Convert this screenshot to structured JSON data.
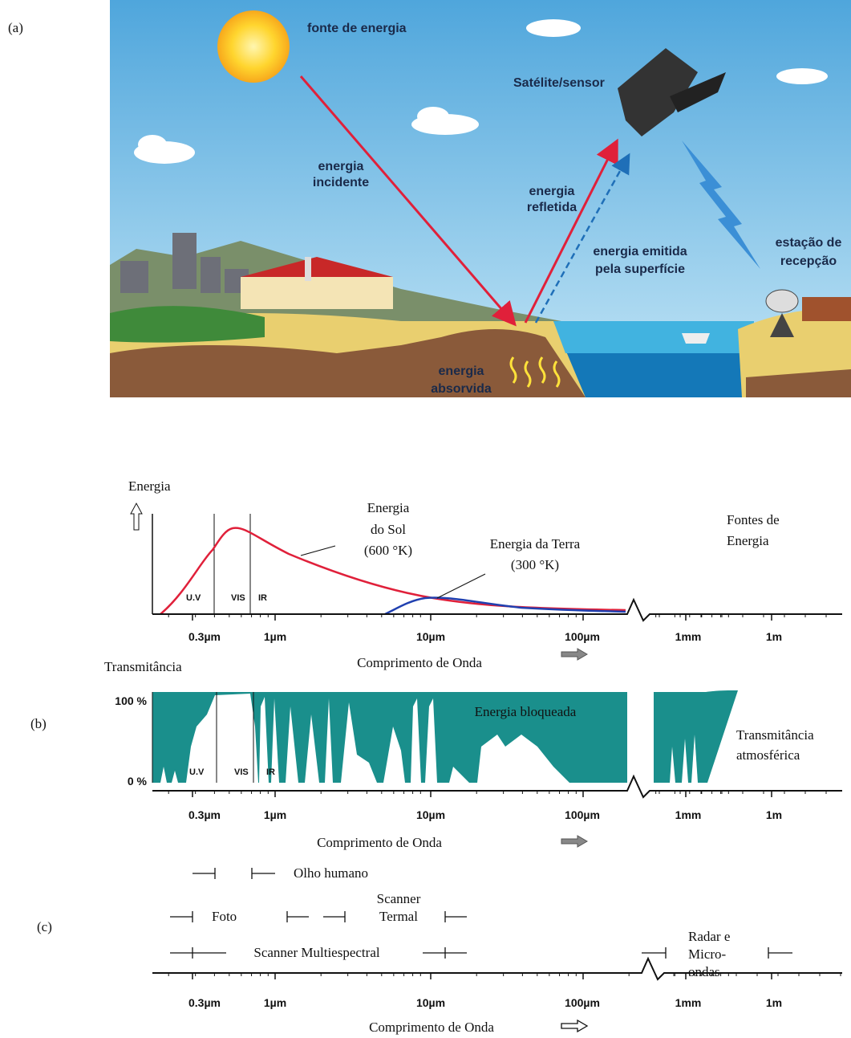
{
  "panel_labels": [
    "(a)",
    "(b)",
    "(c)"
  ],
  "illustration": {
    "source": "fonte de energia",
    "sensor": "Satélite/sensor",
    "incident": [
      "energia",
      "incidente"
    ],
    "reflected": [
      "energia",
      "refletida"
    ],
    "emitted": [
      "energia emitida",
      "pela superfície"
    ],
    "station": [
      "estação de",
      "recepção"
    ],
    "absorbed": [
      "energia",
      "absorvida"
    ]
  },
  "spectrum": {
    "y_label": "Energia",
    "sun": [
      "Energia",
      "do Sol",
      "(600 °K)"
    ],
    "earth": [
      "Energia da Terra",
      "(300 °K)"
    ],
    "sources": [
      "Fontes de",
      "Energia"
    ],
    "bands": [
      "U.V",
      "VIS",
      "IR"
    ],
    "ticks": [
      "0.3µm",
      "1µm",
      "10µm",
      "100µm",
      "1mm",
      "1m"
    ],
    "x_label": "Comprimento de Onda"
  },
  "transmittance": {
    "y_label": "Transmitância",
    "y_ticks": [
      "100 %",
      "0 %"
    ],
    "blocked": "Energia bloqueada",
    "caption": [
      "Transmitância",
      "atmosférica"
    ],
    "bands": [
      "U.V",
      "VIS",
      "IR"
    ],
    "ticks": [
      "0.3µm",
      "1µm",
      "10µm",
      "100µm",
      "1mm",
      "1m"
    ],
    "x_label": "Comprimento de Onda"
  },
  "sensors": {
    "eye": "Olho humano",
    "photo": "Foto",
    "thermal": [
      "Scanner",
      "Termal"
    ],
    "multispectral": "Scanner Multiespectral",
    "radar": [
      "Radar e",
      "Micro-",
      "ondas"
    ],
    "ticks": [
      "0.3µm",
      "1µm",
      "10µm",
      "100µm",
      "1mm",
      "1m"
    ],
    "x_label": "Comprimento de Onda"
  }
}
